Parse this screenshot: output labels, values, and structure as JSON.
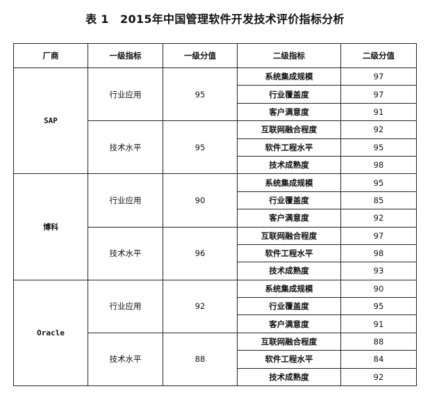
{
  "title": "表 1　2015年中国管理软件开发技术评价指标分析",
  "headers": [
    "厂商",
    "一级指标",
    "一级分值",
    "二级指标",
    "二级分值"
  ],
  "vendors": [
    {
      "name": "SAP",
      "groups": [
        {
          "indicator": "行业应用",
          "score": "95",
          "items": [
            {
              "name": "系统集成规模",
              "score": "97"
            },
            {
              "name": "行业覆盖度",
              "score": "97"
            },
            {
              "name": "客户满意度",
              "score": "91"
            }
          ]
        },
        {
          "indicator": "技术水平",
          "score": "95",
          "items": [
            {
              "name": "互联网融合程度",
              "score": "92"
            },
            {
              "name": "软件工程水平",
              "score": "95"
            },
            {
              "name": "技术成熟度",
              "score": "98"
            }
          ]
        }
      ]
    },
    {
      "name": "博科",
      "groups": [
        {
          "indicator": "行业应用",
          "score": "90",
          "items": [
            {
              "name": "系统集成规模",
              "score": "95"
            },
            {
              "name": "行业覆盖度",
              "score": "85"
            },
            {
              "name": "客户满意度",
              "score": "92"
            }
          ]
        },
        {
          "indicator": "技术水平",
          "score": "96",
          "items": [
            {
              "name": "互联网融合程度",
              "score": "97"
            },
            {
              "name": "软件工程水平",
              "score": "98"
            },
            {
              "name": "技术成熟度",
              "score": "93"
            }
          ]
        }
      ]
    },
    {
      "name": "Oracle",
      "groups": [
        {
          "indicator": "行业应用",
          "score": "92",
          "items": [
            {
              "name": "系统集成规模",
              "score": "90"
            },
            {
              "name": "行业覆盖度",
              "score": "95"
            },
            {
              "name": "客户满意度",
              "score": "91"
            }
          ]
        },
        {
          "indicator": "技术水平",
          "score": "88",
          "items": [
            {
              "name": "互联网融合程度",
              "score": "88"
            },
            {
              "name": "软件工程水平",
              "score": "84"
            },
            {
              "name": "技术成熟度",
              "score": "92"
            }
          ]
        }
      ]
    }
  ]
}
